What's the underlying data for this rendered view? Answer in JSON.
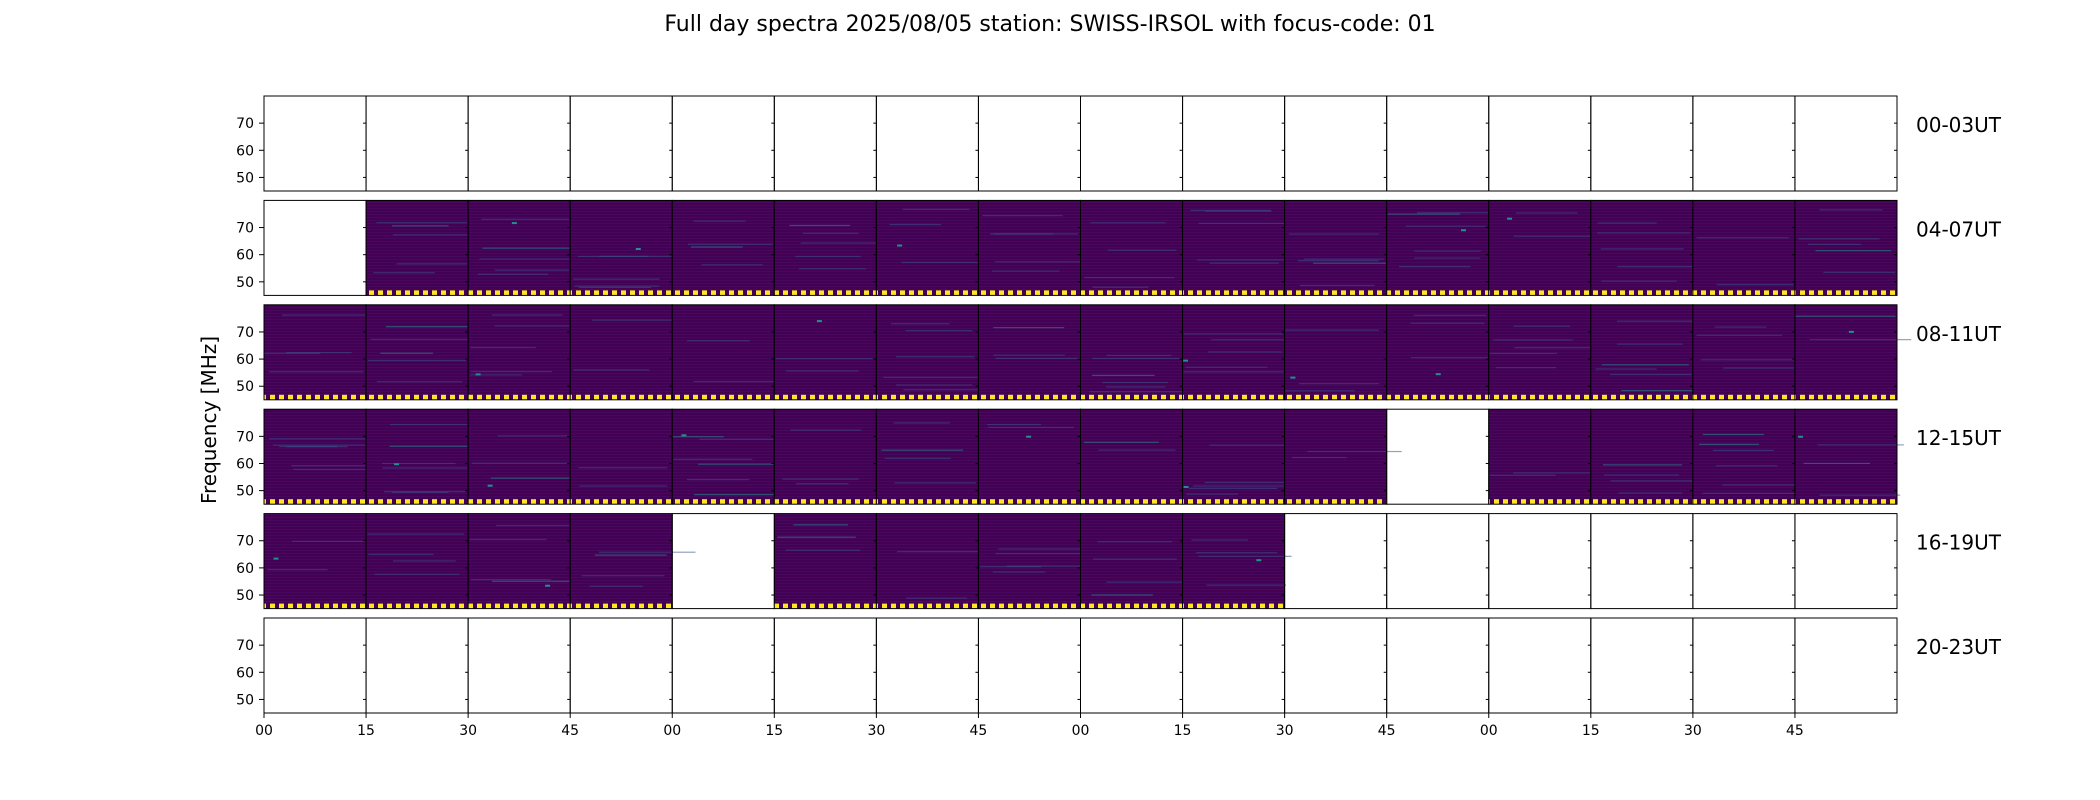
{
  "chart_data": {
    "type": "heatmap",
    "title": "Full day spectra 2025/08/05 station: SWISS-IRSOL with focus-code: 01",
    "ylabel": "Frequency [MHz]",
    "y_ticks": [
      70,
      60,
      50
    ],
    "ylim": [
      45,
      80
    ],
    "x_tick_labels": [
      "00",
      "15",
      "30",
      "45",
      "00",
      "15",
      "30",
      "45",
      "00",
      "15",
      "30",
      "45",
      "00",
      "15",
      "30",
      "45"
    ],
    "panels_per_row": 16,
    "colormap": [
      "#440154",
      "#3b528b",
      "#21918c",
      "#5ec962",
      "#fde725"
    ],
    "rows": [
      {
        "label": "00-03UT",
        "has_data": [
          0,
          0,
          0,
          0,
          0,
          0,
          0,
          0,
          0,
          0,
          0,
          0,
          0,
          0,
          0,
          0
        ]
      },
      {
        "label": "04-07UT",
        "has_data": [
          0,
          1,
          1,
          1,
          1,
          1,
          1,
          1,
          1,
          1,
          1,
          1,
          1,
          1,
          1,
          1
        ]
      },
      {
        "label": "08-11UT",
        "has_data": [
          1,
          1,
          1,
          1,
          1,
          1,
          1,
          1,
          1,
          1,
          1,
          1,
          1,
          1,
          1,
          1
        ]
      },
      {
        "label": "12-15UT",
        "has_data": [
          1,
          1,
          1,
          1,
          1,
          1,
          1,
          1,
          1,
          1,
          1,
          0,
          1,
          1,
          1,
          1
        ]
      },
      {
        "label": "16-19UT",
        "has_data": [
          1,
          1,
          1,
          1,
          0,
          1,
          1,
          1,
          1,
          1,
          0,
          0,
          0,
          0,
          0,
          0
        ]
      },
      {
        "label": "20-23UT",
        "has_data": [
          0,
          0,
          0,
          0,
          0,
          0,
          0,
          0,
          0,
          0,
          0,
          0,
          0,
          0,
          0,
          0
        ]
      }
    ]
  }
}
